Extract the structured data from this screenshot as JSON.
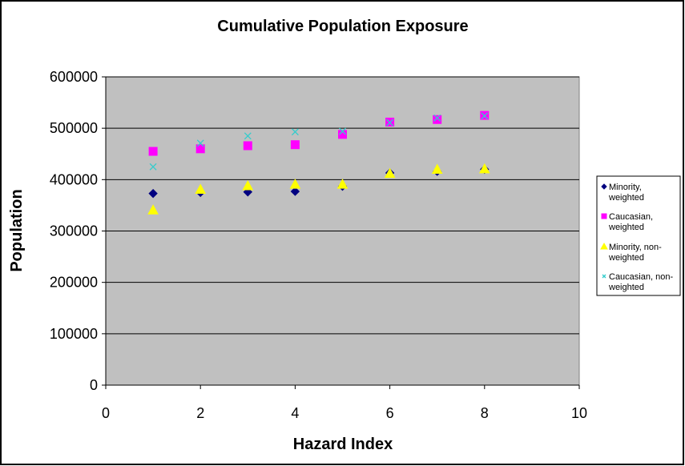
{
  "chart_data": {
    "type": "scatter",
    "title": "Cumulative Population Exposure",
    "xlabel": "Hazard Index",
    "ylabel": "Population",
    "xlim": [
      0,
      10
    ],
    "ylim": [
      0,
      600000
    ],
    "x_ticks": [
      "0",
      "2",
      "4",
      "6",
      "8",
      "10"
    ],
    "y_ticks": [
      "0",
      "100000",
      "200000",
      "300000",
      "400000",
      "500000",
      "600000"
    ],
    "grid": "horizontal",
    "plot_background": "#c0c0c0",
    "legend_position": "right",
    "series": [
      {
        "name_lines": [
          "Minority,",
          "weighted"
        ],
        "marker": "diamond",
        "color": "#000080",
        "x": [
          1,
          2,
          3,
          4,
          5,
          6,
          7,
          8
        ],
        "y": [
          373000,
          375000,
          376000,
          377000,
          387000,
          413000,
          416000,
          420000
        ]
      },
      {
        "name_lines": [
          "Caucasian,",
          "weighted"
        ],
        "marker": "square",
        "color": "#ff00ff",
        "x": [
          1,
          2,
          3,
          4,
          5,
          6,
          7,
          8
        ],
        "y": [
          455000,
          460000,
          466000,
          468000,
          488000,
          512000,
          517000,
          525000
        ]
      },
      {
        "name_lines": [
          "Minority, non-",
          "weighted"
        ],
        "marker": "triangle",
        "color": "#ffff00",
        "x": [
          1,
          2,
          3,
          4,
          5,
          6,
          7,
          8
        ],
        "y": [
          341000,
          381000,
          388000,
          391000,
          391000,
          412000,
          420000,
          421000
        ]
      },
      {
        "name_lines": [
          "Caucasian, non-",
          "weighted"
        ],
        "marker": "x",
        "color": "#33cccc",
        "x": [
          1,
          2,
          3,
          4,
          5,
          6,
          7,
          8
        ],
        "y": [
          425000,
          471000,
          485000,
          493000,
          494000,
          511000,
          520000,
          524000
        ]
      }
    ]
  }
}
